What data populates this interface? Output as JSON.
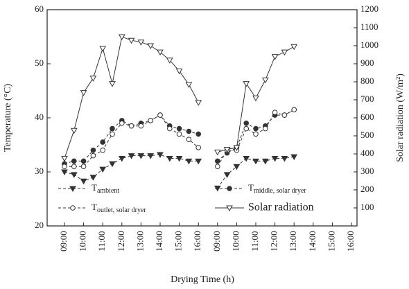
{
  "chart_data": {
    "type": "line",
    "xlabel": "Drying Time (h)",
    "ylabel": "Temperature (°C)",
    "y2label": "Solar radiation (W/m²)",
    "categories": [
      "09:00",
      null,
      "10:00",
      null,
      "11:00",
      null,
      "12:00",
      null,
      "13:00",
      null,
      "14:00",
      null,
      "15:00",
      null,
      "16:00",
      null,
      "09:00",
      null,
      "10:00",
      null,
      "11:00",
      null,
      "12:00",
      null,
      "13:00",
      null,
      "14:00",
      null,
      "15:00",
      null,
      "16:00"
    ],
    "ylim": [
      20,
      60
    ],
    "yticks": [
      20,
      30,
      40,
      50,
      60
    ],
    "y2lim": [
      0,
      1200
    ],
    "y2ticks": [
      100,
      200,
      300,
      400,
      500,
      600,
      700,
      800,
      900,
      1000,
      1100,
      1200
    ],
    "series": [
      {
        "name": "T",
        "subscript": "ambient",
        "color": "#333333",
        "marker": "triangle-down-filled",
        "dash": true,
        "values": [
          30,
          29.5,
          28.3,
          29,
          30.5,
          31.5,
          32.5,
          33,
          33,
          33,
          33.2,
          32.5,
          32.5,
          32,
          32,
          null,
          27,
          29.5,
          31,
          32.5,
          32,
          32,
          32.5,
          32.5,
          32.8,
          null,
          null,
          null,
          null,
          null,
          null
        ]
      },
      {
        "name": "T",
        "subscript": "middle, solar dryer",
        "color": "#333333",
        "marker": "circle-filled",
        "dash": true,
        "values": [
          31.5,
          32,
          32,
          34,
          35.5,
          38,
          39.5,
          38.5,
          39,
          39.5,
          40.5,
          38.5,
          38,
          37.5,
          37,
          null,
          32,
          33.5,
          34.5,
          39,
          38,
          38.5,
          40.5,
          40.5,
          41.5,
          null,
          null,
          null,
          null,
          null,
          null
        ]
      },
      {
        "name": "T",
        "subscript": "outlet, solar dryer",
        "color": "#333333",
        "marker": "circle-open",
        "dash": true,
        "values": [
          31,
          31,
          31,
          33,
          34,
          37,
          39,
          38.5,
          38.5,
          39.5,
          40.5,
          38,
          37,
          36,
          34.5,
          null,
          31,
          34,
          34,
          38,
          37,
          38,
          41,
          40.5,
          41.5,
          null,
          null,
          null,
          null,
          null,
          null
        ]
      },
      {
        "name": "Solar radiation",
        "color": "#333333",
        "marker": "triangle-down-open",
        "dash": false,
        "axis": "y2",
        "values": [
          375,
          530,
          740,
          820,
          985,
          790,
          1050,
          1030,
          1020,
          1000,
          965,
          920,
          860,
          785,
          685,
          null,
          410,
          425,
          435,
          790,
          710,
          810,
          940,
          965,
          995,
          null,
          null,
          null,
          null,
          null,
          null
        ]
      }
    ]
  }
}
